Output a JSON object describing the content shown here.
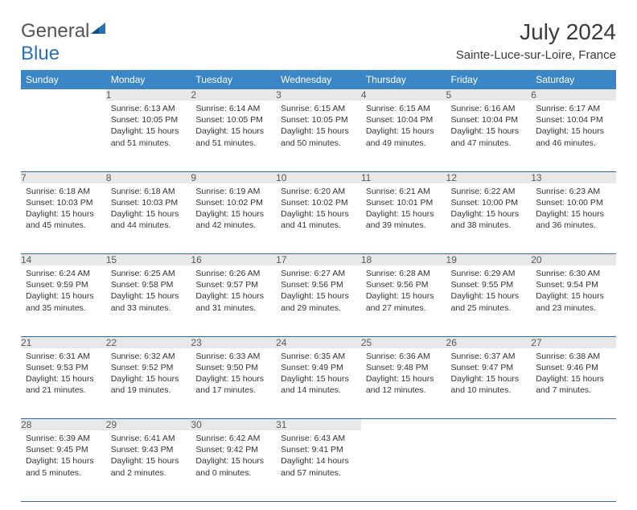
{
  "logo": {
    "text_gen": "General",
    "text_blue": "Blue"
  },
  "title": "July 2024",
  "location": "Sainte-Luce-sur-Loire, France",
  "colors": {
    "header_bg": "#3b86c6",
    "header_text": "#ffffff",
    "daynum_bg": "#e8e8e8",
    "daynum_text": "#5a5a5a",
    "rule": "#2d6aa0",
    "body_text": "#333333",
    "logo_gray": "#545454",
    "logo_blue": "#2772b2"
  },
  "weekdays": [
    "Sunday",
    "Monday",
    "Tuesday",
    "Wednesday",
    "Thursday",
    "Friday",
    "Saturday"
  ],
  "weeks": [
    [
      null,
      {
        "n": "1",
        "sr": "Sunrise: 6:13 AM",
        "ss": "Sunset: 10:05 PM",
        "d1": "Daylight: 15 hours",
        "d2": "and 51 minutes."
      },
      {
        "n": "2",
        "sr": "Sunrise: 6:14 AM",
        "ss": "Sunset: 10:05 PM",
        "d1": "Daylight: 15 hours",
        "d2": "and 51 minutes."
      },
      {
        "n": "3",
        "sr": "Sunrise: 6:15 AM",
        "ss": "Sunset: 10:05 PM",
        "d1": "Daylight: 15 hours",
        "d2": "and 50 minutes."
      },
      {
        "n": "4",
        "sr": "Sunrise: 6:15 AM",
        "ss": "Sunset: 10:04 PM",
        "d1": "Daylight: 15 hours",
        "d2": "and 49 minutes."
      },
      {
        "n": "5",
        "sr": "Sunrise: 6:16 AM",
        "ss": "Sunset: 10:04 PM",
        "d1": "Daylight: 15 hours",
        "d2": "and 47 minutes."
      },
      {
        "n": "6",
        "sr": "Sunrise: 6:17 AM",
        "ss": "Sunset: 10:04 PM",
        "d1": "Daylight: 15 hours",
        "d2": "and 46 minutes."
      }
    ],
    [
      {
        "n": "7",
        "sr": "Sunrise: 6:18 AM",
        "ss": "Sunset: 10:03 PM",
        "d1": "Daylight: 15 hours",
        "d2": "and 45 minutes."
      },
      {
        "n": "8",
        "sr": "Sunrise: 6:18 AM",
        "ss": "Sunset: 10:03 PM",
        "d1": "Daylight: 15 hours",
        "d2": "and 44 minutes."
      },
      {
        "n": "9",
        "sr": "Sunrise: 6:19 AM",
        "ss": "Sunset: 10:02 PM",
        "d1": "Daylight: 15 hours",
        "d2": "and 42 minutes."
      },
      {
        "n": "10",
        "sr": "Sunrise: 6:20 AM",
        "ss": "Sunset: 10:02 PM",
        "d1": "Daylight: 15 hours",
        "d2": "and 41 minutes."
      },
      {
        "n": "11",
        "sr": "Sunrise: 6:21 AM",
        "ss": "Sunset: 10:01 PM",
        "d1": "Daylight: 15 hours",
        "d2": "and 39 minutes."
      },
      {
        "n": "12",
        "sr": "Sunrise: 6:22 AM",
        "ss": "Sunset: 10:00 PM",
        "d1": "Daylight: 15 hours",
        "d2": "and 38 minutes."
      },
      {
        "n": "13",
        "sr": "Sunrise: 6:23 AM",
        "ss": "Sunset: 10:00 PM",
        "d1": "Daylight: 15 hours",
        "d2": "and 36 minutes."
      }
    ],
    [
      {
        "n": "14",
        "sr": "Sunrise: 6:24 AM",
        "ss": "Sunset: 9:59 PM",
        "d1": "Daylight: 15 hours",
        "d2": "and 35 minutes."
      },
      {
        "n": "15",
        "sr": "Sunrise: 6:25 AM",
        "ss": "Sunset: 9:58 PM",
        "d1": "Daylight: 15 hours",
        "d2": "and 33 minutes."
      },
      {
        "n": "16",
        "sr": "Sunrise: 6:26 AM",
        "ss": "Sunset: 9:57 PM",
        "d1": "Daylight: 15 hours",
        "d2": "and 31 minutes."
      },
      {
        "n": "17",
        "sr": "Sunrise: 6:27 AM",
        "ss": "Sunset: 9:56 PM",
        "d1": "Daylight: 15 hours",
        "d2": "and 29 minutes."
      },
      {
        "n": "18",
        "sr": "Sunrise: 6:28 AM",
        "ss": "Sunset: 9:56 PM",
        "d1": "Daylight: 15 hours",
        "d2": "and 27 minutes."
      },
      {
        "n": "19",
        "sr": "Sunrise: 6:29 AM",
        "ss": "Sunset: 9:55 PM",
        "d1": "Daylight: 15 hours",
        "d2": "and 25 minutes."
      },
      {
        "n": "20",
        "sr": "Sunrise: 6:30 AM",
        "ss": "Sunset: 9:54 PM",
        "d1": "Daylight: 15 hours",
        "d2": "and 23 minutes."
      }
    ],
    [
      {
        "n": "21",
        "sr": "Sunrise: 6:31 AM",
        "ss": "Sunset: 9:53 PM",
        "d1": "Daylight: 15 hours",
        "d2": "and 21 minutes."
      },
      {
        "n": "22",
        "sr": "Sunrise: 6:32 AM",
        "ss": "Sunset: 9:52 PM",
        "d1": "Daylight: 15 hours",
        "d2": "and 19 minutes."
      },
      {
        "n": "23",
        "sr": "Sunrise: 6:33 AM",
        "ss": "Sunset: 9:50 PM",
        "d1": "Daylight: 15 hours",
        "d2": "and 17 minutes."
      },
      {
        "n": "24",
        "sr": "Sunrise: 6:35 AM",
        "ss": "Sunset: 9:49 PM",
        "d1": "Daylight: 15 hours",
        "d2": "and 14 minutes."
      },
      {
        "n": "25",
        "sr": "Sunrise: 6:36 AM",
        "ss": "Sunset: 9:48 PM",
        "d1": "Daylight: 15 hours",
        "d2": "and 12 minutes."
      },
      {
        "n": "26",
        "sr": "Sunrise: 6:37 AM",
        "ss": "Sunset: 9:47 PM",
        "d1": "Daylight: 15 hours",
        "d2": "and 10 minutes."
      },
      {
        "n": "27",
        "sr": "Sunrise: 6:38 AM",
        "ss": "Sunset: 9:46 PM",
        "d1": "Daylight: 15 hours",
        "d2": "and 7 minutes."
      }
    ],
    [
      {
        "n": "28",
        "sr": "Sunrise: 6:39 AM",
        "ss": "Sunset: 9:45 PM",
        "d1": "Daylight: 15 hours",
        "d2": "and 5 minutes."
      },
      {
        "n": "29",
        "sr": "Sunrise: 6:41 AM",
        "ss": "Sunset: 9:43 PM",
        "d1": "Daylight: 15 hours",
        "d2": "and 2 minutes."
      },
      {
        "n": "30",
        "sr": "Sunrise: 6:42 AM",
        "ss": "Sunset: 9:42 PM",
        "d1": "Daylight: 15 hours",
        "d2": "and 0 minutes."
      },
      {
        "n": "31",
        "sr": "Sunrise: 6:43 AM",
        "ss": "Sunset: 9:41 PM",
        "d1": "Daylight: 14 hours",
        "d2": "and 57 minutes."
      },
      null,
      null,
      null
    ]
  ]
}
